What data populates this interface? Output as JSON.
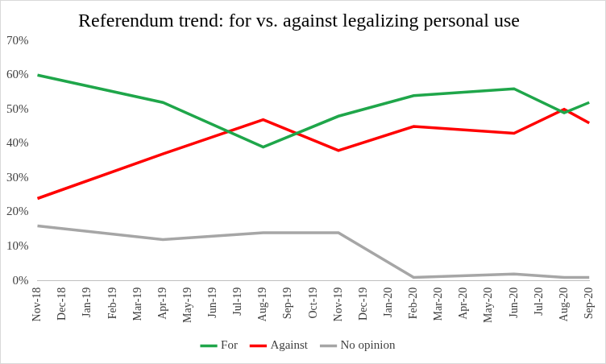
{
  "chart_data": {
    "type": "line",
    "title": "Referendum trend: for vs. against legalizing personal use",
    "categories": [
      "Nov-18",
      "Dec-18",
      "Jan-19",
      "Feb-19",
      "Mar-19",
      "Apr-19",
      "May-19",
      "Jun-19",
      "Jul-19",
      "Aug-19",
      "Sep-19",
      "Oct-19",
      "Nov-19",
      "Dec-19",
      "Jan-20",
      "Feb-20",
      "Mar-20",
      "Apr-20",
      "May-20",
      "Jun-20",
      "Jul-20",
      "Aug-20",
      "Sep-20"
    ],
    "series": [
      {
        "name": "For",
        "color": "#1fa64a",
        "values": [
          60,
          null,
          null,
          null,
          null,
          52,
          null,
          null,
          null,
          39,
          null,
          null,
          48,
          null,
          null,
          54,
          null,
          null,
          null,
          56,
          null,
          49,
          52
        ]
      },
      {
        "name": "Against",
        "color": "#ff0000",
        "values": [
          24,
          null,
          null,
          null,
          null,
          37,
          null,
          null,
          null,
          47,
          null,
          null,
          38,
          null,
          null,
          45,
          null,
          null,
          null,
          43,
          null,
          50,
          46
        ]
      },
      {
        "name": "No opinion",
        "color": "#a6a6a6",
        "values": [
          16,
          null,
          null,
          null,
          null,
          12,
          null,
          null,
          null,
          14,
          null,
          null,
          14,
          null,
          null,
          1,
          null,
          null,
          null,
          2,
          null,
          1,
          1
        ]
      }
    ],
    "ylim": [
      0,
      70
    ],
    "yticks": [
      {
        "value": 0,
        "label": "0%"
      },
      {
        "value": 10,
        "label": "10%"
      },
      {
        "value": 20,
        "label": "20%"
      },
      {
        "value": 30,
        "label": "30%"
      },
      {
        "value": 40,
        "label": "40%"
      },
      {
        "value": 50,
        "label": "50%"
      },
      {
        "value": 60,
        "label": "60%"
      },
      {
        "value": 70,
        "label": "70%"
      }
    ],
    "grid": false,
    "legend": "bottom"
  }
}
